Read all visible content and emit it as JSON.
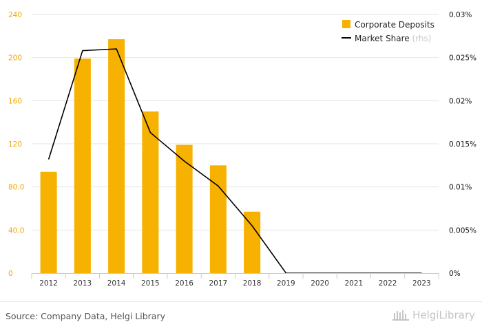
{
  "chart_data": {
    "type": "bar",
    "categories": [
      "2012",
      "2013",
      "2014",
      "2015",
      "2016",
      "2017",
      "2018",
      "2019",
      "2020",
      "2021",
      "2022",
      "2023"
    ],
    "series": [
      {
        "name": "Corporate Deposits",
        "type": "bar",
        "axis": "left",
        "color": "#f7b100",
        "values": [
          94,
          199,
          217,
          150,
          119,
          100,
          57,
          null,
          null,
          null,
          null,
          null
        ]
      },
      {
        "name": "Market Share",
        "name_suffix": "(rhs)",
        "type": "line",
        "axis": "right",
        "unit": "%",
        "color": "#000000",
        "values": [
          0.0132,
          0.0258,
          0.026,
          0.0163,
          0.013,
          0.0101,
          0.0055,
          0,
          0,
          0,
          0,
          0
        ]
      }
    ],
    "y_left": {
      "min": 0,
      "max": 240,
      "ticks": [
        "0",
        "40.0",
        "80.0",
        "120",
        "160",
        "200",
        "240"
      ],
      "color": "#f0a800"
    },
    "y_right": {
      "min": 0,
      "max": 0.03,
      "ticks": [
        "0%",
        "0.005%",
        "0.01%",
        "0.015%",
        "0.02%",
        "0.025%",
        "0.03%"
      ]
    },
    "grid": true,
    "legend_position": "top-right"
  },
  "footer": {
    "source": "Source: Company Data, Helgi Library",
    "brand": "HelgiLibrary"
  }
}
